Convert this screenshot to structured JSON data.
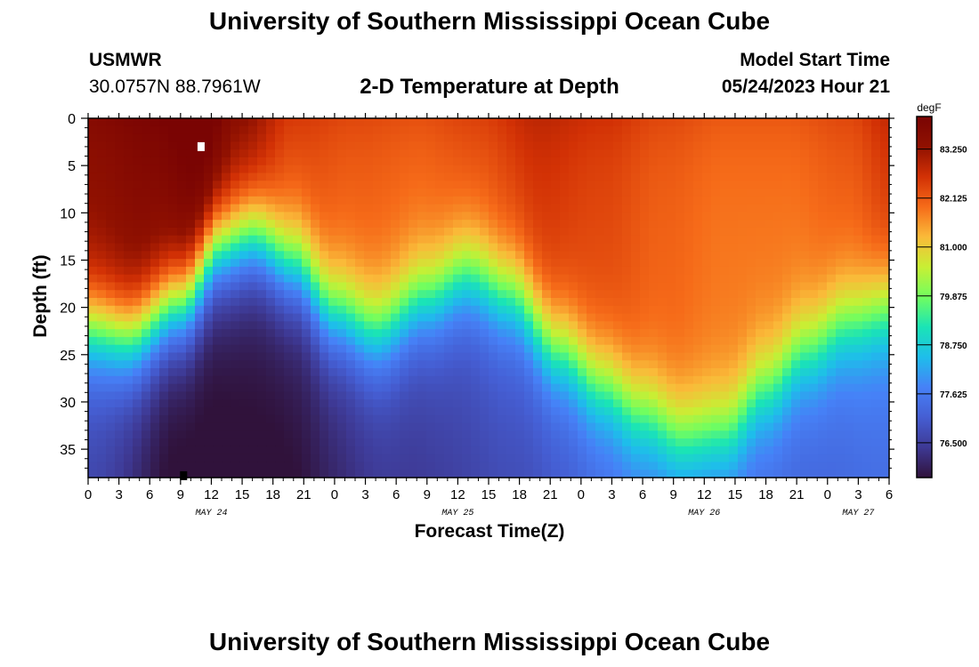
{
  "header": {
    "title": "University of Southern Mississippi Ocean Cube",
    "station_code": "USMWR",
    "station_coords": "30.0757N  88.7961W",
    "subtitle": "2-D Temperature at Depth",
    "model_start_label": "Model Start Time",
    "model_start_value": "05/24/2023 Hour 21"
  },
  "footer": {
    "title": "University of Southern Mississippi Ocean Cube"
  },
  "chart_data": {
    "type": "heatmap",
    "title": "2-D Temperature at Depth",
    "xlabel": "Forecast Time(Z)",
    "ylabel": "Depth (ft)",
    "x_ticks": [
      "0",
      "3",
      "6",
      "9",
      "12",
      "15",
      "18",
      "21",
      "0",
      "3",
      "6",
      "9",
      "12",
      "15",
      "18",
      "21",
      "0",
      "3",
      "6",
      "9",
      "12",
      "15",
      "18",
      "21",
      "0",
      "3",
      "6"
    ],
    "date_labels": [
      {
        "label": "MAY 24",
        "hour": 12
      },
      {
        "label": "MAY 25",
        "hour": 36
      },
      {
        "label": "MAY 26",
        "hour": 60
      },
      {
        "label": "MAY 27",
        "hour": 75
      }
    ],
    "x_range_hours": [
      0,
      78
    ],
    "y_ticks": [
      0,
      5,
      10,
      15,
      20,
      25,
      30,
      35
    ],
    "y_range_ft": [
      0,
      38
    ],
    "colorbar": {
      "unit": "degF",
      "range": [
        75.7,
        84.0
      ],
      "tick_values": [
        76.5,
        77.625,
        78.75,
        79.875,
        81.0,
        82.125,
        83.25
      ],
      "tick_labels": [
        "76.500",
        "77.625",
        "78.750",
        "79.875",
        "81.000",
        "82.125",
        "83.250"
      ],
      "colormap": [
        "#30123b",
        "#3e3994",
        "#455ed3",
        "#4681f7",
        "#1ebdeb",
        "#1ae4b6",
        "#71fe5f",
        "#c8ef34",
        "#faba39",
        "#f66b19",
        "#d23105",
        "#901101",
        "#7a0403"
      ]
    },
    "field_model": {
      "thermocline_depth_ft": [
        {
          "hour": 0,
          "depth": 22
        },
        {
          "hour": 4,
          "depth": 23
        },
        {
          "hour": 9,
          "depth": 19.5
        },
        {
          "hour": 13,
          "depth": 13.5
        },
        {
          "hour": 16,
          "depth": 12.5
        },
        {
          "hour": 20,
          "depth": 15.5
        },
        {
          "hour": 24,
          "depth": 20.5
        },
        {
          "hour": 28,
          "depth": 22.5
        },
        {
          "hour": 33,
          "depth": 19
        },
        {
          "hour": 37,
          "depth": 16.5
        },
        {
          "hour": 41,
          "depth": 18.5
        },
        {
          "hour": 46,
          "depth": 24.5
        },
        {
          "hour": 50,
          "depth": 28
        },
        {
          "hour": 54,
          "depth": 31
        },
        {
          "hour": 58,
          "depth": 33.5
        },
        {
          "hour": 62,
          "depth": 33
        },
        {
          "hour": 66,
          "depth": 28.5
        },
        {
          "hour": 70,
          "depth": 24.5
        },
        {
          "hour": 74,
          "depth": 21.5
        },
        {
          "hour": 78,
          "depth": 20
        }
      ],
      "surface_temp_degF": [
        {
          "hour": 0,
          "temp": 83.3
        },
        {
          "hour": 6,
          "temp": 83.6
        },
        {
          "hour": 11,
          "temp": 84.0
        },
        {
          "hour": 15,
          "temp": 83.1
        },
        {
          "hour": 20,
          "temp": 82.2
        },
        {
          "hour": 26,
          "temp": 82.0
        },
        {
          "hour": 32,
          "temp": 81.9
        },
        {
          "hour": 38,
          "temp": 82.1
        },
        {
          "hour": 44,
          "temp": 82.5
        },
        {
          "hour": 50,
          "temp": 82.3
        },
        {
          "hour": 56,
          "temp": 82.0
        },
        {
          "hour": 62,
          "temp": 81.8
        },
        {
          "hour": 68,
          "temp": 81.8
        },
        {
          "hour": 74,
          "temp": 82.0
        },
        {
          "hour": 78,
          "temp": 82.4
        }
      ],
      "bottom_temp_degF": [
        {
          "hour": 0,
          "temp": 76.8
        },
        {
          "hour": 9,
          "temp": 75.8
        },
        {
          "hour": 18,
          "temp": 75.9
        },
        {
          "hour": 30,
          "temp": 76.6
        },
        {
          "hour": 42,
          "temp": 77.0
        },
        {
          "hour": 54,
          "temp": 77.6
        },
        {
          "hour": 62,
          "temp": 77.5
        },
        {
          "hour": 70,
          "temp": 77.4
        },
        {
          "hour": 78,
          "temp": 77.6
        }
      ]
    },
    "markers": [
      {
        "kind": "surface-marker",
        "hour": 11,
        "depth_ft": 3.0,
        "color": "#ffffff"
      },
      {
        "kind": "bottom-marker",
        "hour": 9.3,
        "depth_ft": 37.8,
        "color": "#000000"
      }
    ]
  }
}
